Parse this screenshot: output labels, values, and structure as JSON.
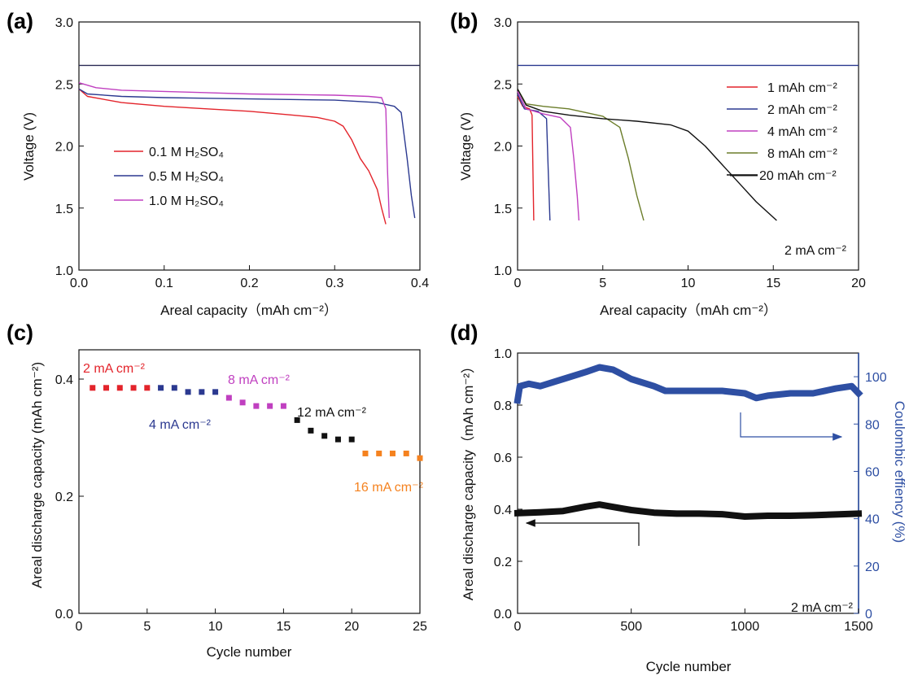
{
  "chart_data": [
    {
      "panel": "(a)",
      "type": "line",
      "xlabel": "Areal capacity（mAh cm⁻²）",
      "ylabel": "Voltage (V)",
      "xlim": [
        0,
        0.4
      ],
      "ylim": [
        1.0,
        3.0
      ],
      "xticks": [
        "0.0",
        "0.1",
        "0.2",
        "0.3",
        "0.4"
      ],
      "yticks": [
        "1.0",
        "1.5",
        "2.0",
        "2.5",
        "3.0"
      ],
      "legend_position": "center-left",
      "series": [
        {
          "name": "0.1 M H₂SO₄",
          "color": "#e3242b",
          "x": [
            0,
            0.01,
            0.05,
            0.1,
            0.15,
            0.2,
            0.25,
            0.28,
            0.3,
            0.31,
            0.32,
            0.33,
            0.34,
            0.35,
            0.355,
            0.36
          ],
          "y": [
            2.46,
            2.4,
            2.35,
            2.32,
            2.3,
            2.28,
            2.25,
            2.23,
            2.2,
            2.16,
            2.05,
            1.9,
            1.8,
            1.65,
            1.5,
            1.37
          ]
        },
        {
          "name": "0.5 M H₂SO₄",
          "color": "#2b3990",
          "x": [
            0,
            0.01,
            0.05,
            0.1,
            0.2,
            0.3,
            0.35,
            0.37,
            0.378,
            0.385,
            0.39,
            0.394
          ],
          "y": [
            2.46,
            2.42,
            2.4,
            2.39,
            2.38,
            2.37,
            2.35,
            2.32,
            2.27,
            1.9,
            1.6,
            1.42
          ]
        },
        {
          "name": "1.0 M H₂SO₄",
          "color": "#c040c0",
          "x": [
            0,
            0.02,
            0.05,
            0.1,
            0.2,
            0.3,
            0.34,
            0.355,
            0.36,
            0.362,
            0.364
          ],
          "y": [
            2.51,
            2.47,
            2.45,
            2.44,
            2.42,
            2.41,
            2.4,
            2.39,
            2.3,
            1.8,
            1.42
          ]
        },
        {
          "name": "",
          "color": "#2a2a55",
          "x": [
            0,
            0.4
          ],
          "y": [
            2.65,
            2.65
          ]
        }
      ]
    },
    {
      "panel": "(b)",
      "type": "line",
      "xlabel": "Areal capacity（mAh cm⁻²）",
      "ylabel": "Voltage (V)",
      "xlim": [
        0,
        20
      ],
      "ylim": [
        1.0,
        3.0
      ],
      "xticks": [
        "0",
        "5",
        "10",
        "15",
        "20"
      ],
      "yticks": [
        "1.0",
        "1.5",
        "2.0",
        "2.5",
        "3.0"
      ],
      "legend_position": "top-right",
      "annotation": "2 mA cm⁻²",
      "series": [
        {
          "name": "1 mAh cm⁻²",
          "color": "#e3242b",
          "x": [
            0,
            0.3,
            0.7,
            0.85,
            0.9,
            0.95
          ],
          "y": [
            2.4,
            2.32,
            2.3,
            2.25,
            1.8,
            1.4
          ]
        },
        {
          "name": "2 mAh cm⁻²",
          "color": "#2b3990",
          "x": [
            0,
            0.4,
            1.2,
            1.7,
            1.8,
            1.9
          ],
          "y": [
            2.42,
            2.3,
            2.28,
            2.22,
            1.8,
            1.4
          ]
        },
        {
          "name": "4 mAh cm⁻²",
          "color": "#c040c0",
          "x": [
            0,
            0.5,
            1.5,
            2.5,
            3.1,
            3.3,
            3.5,
            3.6
          ],
          "y": [
            2.44,
            2.3,
            2.26,
            2.23,
            2.15,
            1.9,
            1.6,
            1.4
          ]
        },
        {
          "name": "8 mAh cm⁻²",
          "color": "#6b7d2a",
          "x": [
            0,
            0.5,
            1.5,
            3,
            5,
            6,
            6.5,
            7,
            7.4
          ],
          "y": [
            2.46,
            2.34,
            2.32,
            2.3,
            2.24,
            2.15,
            1.9,
            1.6,
            1.4
          ]
        },
        {
          "name": "20 mAh cm⁻²",
          "color": "#111111",
          "x": [
            0,
            0.5,
            1.5,
            3,
            5,
            7,
            9,
            10,
            11,
            12,
            13,
            14,
            15.2
          ],
          "y": [
            2.46,
            2.33,
            2.28,
            2.25,
            2.22,
            2.2,
            2.17,
            2.12,
            2.0,
            1.85,
            1.7,
            1.55,
            1.4
          ]
        },
        {
          "name": "",
          "color": "#2b3990",
          "x": [
            0,
            20
          ],
          "y": [
            2.65,
            2.65
          ]
        }
      ]
    },
    {
      "panel": "(c)",
      "type": "scatter",
      "xlabel": "Cycle number",
      "ylabel": "Areal discharge capacity (mAh cm⁻²)",
      "xlim": [
        0,
        25
      ],
      "ylim": [
        0.0,
        0.45
      ],
      "xticks": [
        "0",
        "5",
        "10",
        "15",
        "20",
        "25"
      ],
      "yticks": [
        "0.0",
        "0.2",
        "0.4"
      ],
      "series": [
        {
          "name": "2 mA cm⁻²",
          "color": "#e3242b",
          "x": [
            1,
            2,
            3,
            4,
            5
          ],
          "y": [
            0.385,
            0.385,
            0.385,
            0.385,
            0.385
          ]
        },
        {
          "name": "4 mA cm⁻²",
          "color": "#2b3990",
          "x": [
            6,
            7,
            8,
            9,
            10
          ],
          "y": [
            0.385,
            0.385,
            0.378,
            0.378,
            0.378
          ]
        },
        {
          "name": "8 mA cm⁻²",
          "color": "#c040c0",
          "x": [
            11,
            12,
            13,
            14,
            15
          ],
          "y": [
            0.368,
            0.36,
            0.354,
            0.354,
            0.354
          ]
        },
        {
          "name": "12 mA cm⁻²",
          "color": "#111111",
          "x": [
            16,
            17,
            18,
            19,
            20
          ],
          "y": [
            0.33,
            0.312,
            0.303,
            0.297,
            0.297
          ]
        },
        {
          "name": "16 mA cm⁻²",
          "color": "#f5821f",
          "x": [
            21,
            22,
            23,
            24,
            25
          ],
          "y": [
            0.273,
            0.273,
            0.273,
            0.273,
            0.265
          ]
        }
      ]
    },
    {
      "panel": "(d)",
      "type": "scatter",
      "xlabel": "Cycle number",
      "ylabel": "Areal discharge capacity（mAh cm⁻²）",
      "y2label": "Coulombic effiency (%)",
      "xlim": [
        0,
        1500
      ],
      "ylim": [
        0.0,
        1.0
      ],
      "y2lim": [
        0,
        110
      ],
      "xticks": [
        "0",
        "500",
        "1000",
        "1500"
      ],
      "yticks": [
        "0.0",
        "0.2",
        "0.4",
        "0.6",
        "0.8",
        "1.0"
      ],
      "y2ticks": [
        "0",
        "20",
        "40",
        "60",
        "80",
        "100"
      ],
      "annotation": "2 mA cm⁻²",
      "series": [
        {
          "name": "Areal discharge capacity",
          "color": "#111111",
          "axis": "left",
          "x": [
            0,
            100,
            200,
            300,
            360,
            400,
            500,
            600,
            700,
            800,
            900,
            1000,
            1100,
            1200,
            1300,
            1400,
            1500
          ],
          "y": [
            0.385,
            0.388,
            0.393,
            0.41,
            0.418,
            0.412,
            0.397,
            0.387,
            0.383,
            0.383,
            0.381,
            0.372,
            0.375,
            0.375,
            0.377,
            0.38,
            0.383
          ]
        },
        {
          "name": "Coulombic effiency",
          "color": "#2e4fa3",
          "axis": "right",
          "x": [
            0,
            10,
            50,
            100,
            200,
            300,
            360,
            420,
            500,
            600,
            650,
            700,
            800,
            900,
            1000,
            1050,
            1100,
            1200,
            1300,
            1400,
            1470,
            1500
          ],
          "y": [
            90,
            96,
            97,
            96,
            99,
            102,
            104,
            103,
            99,
            96,
            94,
            94,
            94,
            94,
            93,
            91,
            92,
            93,
            93,
            95,
            96,
            93
          ]
        }
      ]
    }
  ]
}
